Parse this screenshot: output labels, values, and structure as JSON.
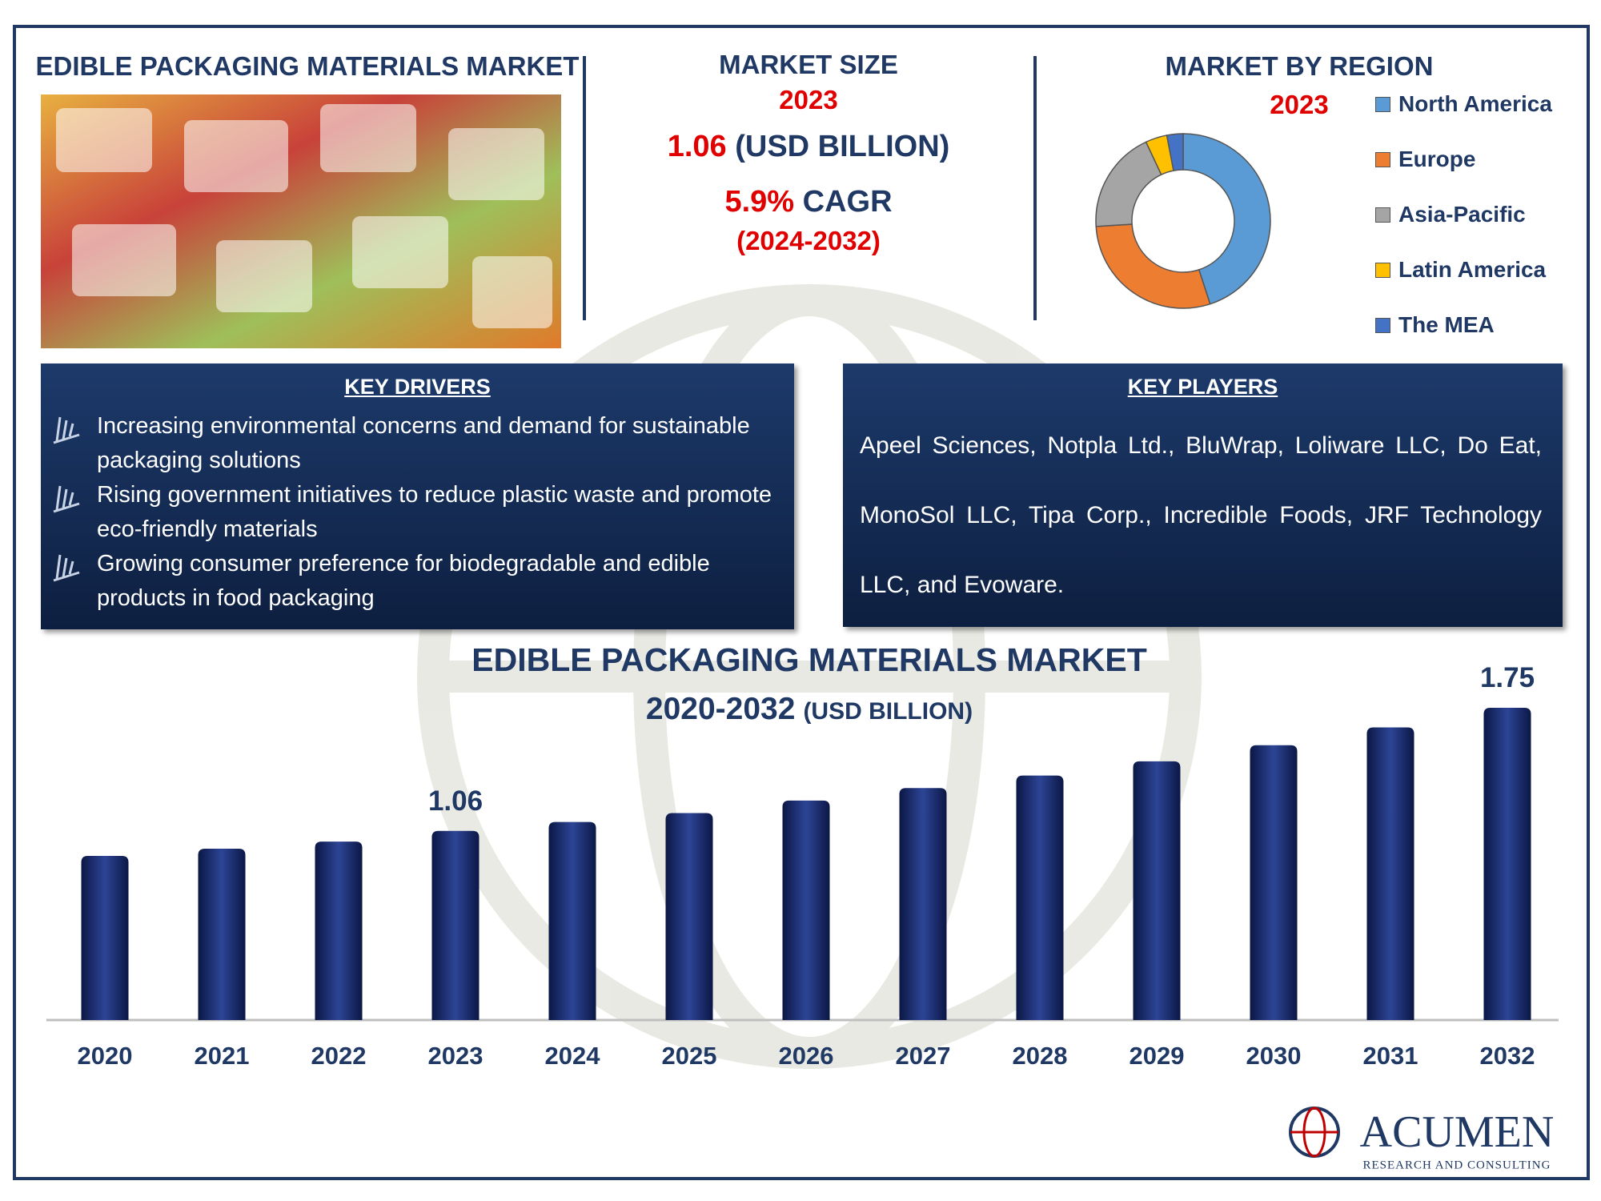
{
  "header": {
    "title": "EDIBLE PACKAGING MATERIALS MARKET"
  },
  "market_size": {
    "title": "MARKET SIZE",
    "year": "2023",
    "value": "1.06",
    "unit": "(USD BILLION)",
    "cagr": "5.9%",
    "cagr_label": "CAGR",
    "period": "(2024-2032)"
  },
  "key_drivers": {
    "title": "KEY DRIVERS",
    "items": [
      "Increasing environmental concerns and demand for sustainable packaging solutions",
      "Rising government initiatives to reduce plastic waste and promote eco-friendly materials",
      "Growing consumer preference for biodegradable and edible products in food packaging"
    ]
  },
  "key_players": {
    "title": "KEY PLAYERS",
    "text": "Apeel Sciences, Notpla Ltd., BluWrap, Loliware LLC, Do Eat, MonoSol LLC, Tipa Corp., Incredible Foods, JRF Technology LLC, and Evoware."
  },
  "logo": {
    "name": "ACUMEN",
    "tagline": "RESEARCH AND CONSULTING"
  },
  "chart_data": [
    {
      "type": "pie",
      "donut": true,
      "title": "MARKET BY REGION",
      "subtitle": "2023",
      "categories": [
        "North America",
        "Europe",
        "Asia-Pacific",
        "Latin America",
        "The MEA"
      ],
      "values": [
        45,
        29,
        19,
        4,
        3
      ],
      "colors": [
        "#5b9bd5",
        "#ed7d31",
        "#a5a5a5",
        "#ffc000",
        "#4472c4"
      ]
    },
    {
      "type": "bar",
      "title": "EDIBLE PACKAGING MATERIALS MARKET",
      "subtitle": "2020-2032",
      "unit": "(USD BILLION)",
      "categories": [
        "2020",
        "2021",
        "2022",
        "2023",
        "2024",
        "2025",
        "2026",
        "2027",
        "2028",
        "2029",
        "2030",
        "2031",
        "2032"
      ],
      "values": [
        0.92,
        0.96,
        1.0,
        1.06,
        1.11,
        1.16,
        1.23,
        1.3,
        1.37,
        1.45,
        1.54,
        1.64,
        1.75
      ],
      "labeled_indices": [
        3,
        12
      ],
      "color": "#14245e"
    }
  ]
}
